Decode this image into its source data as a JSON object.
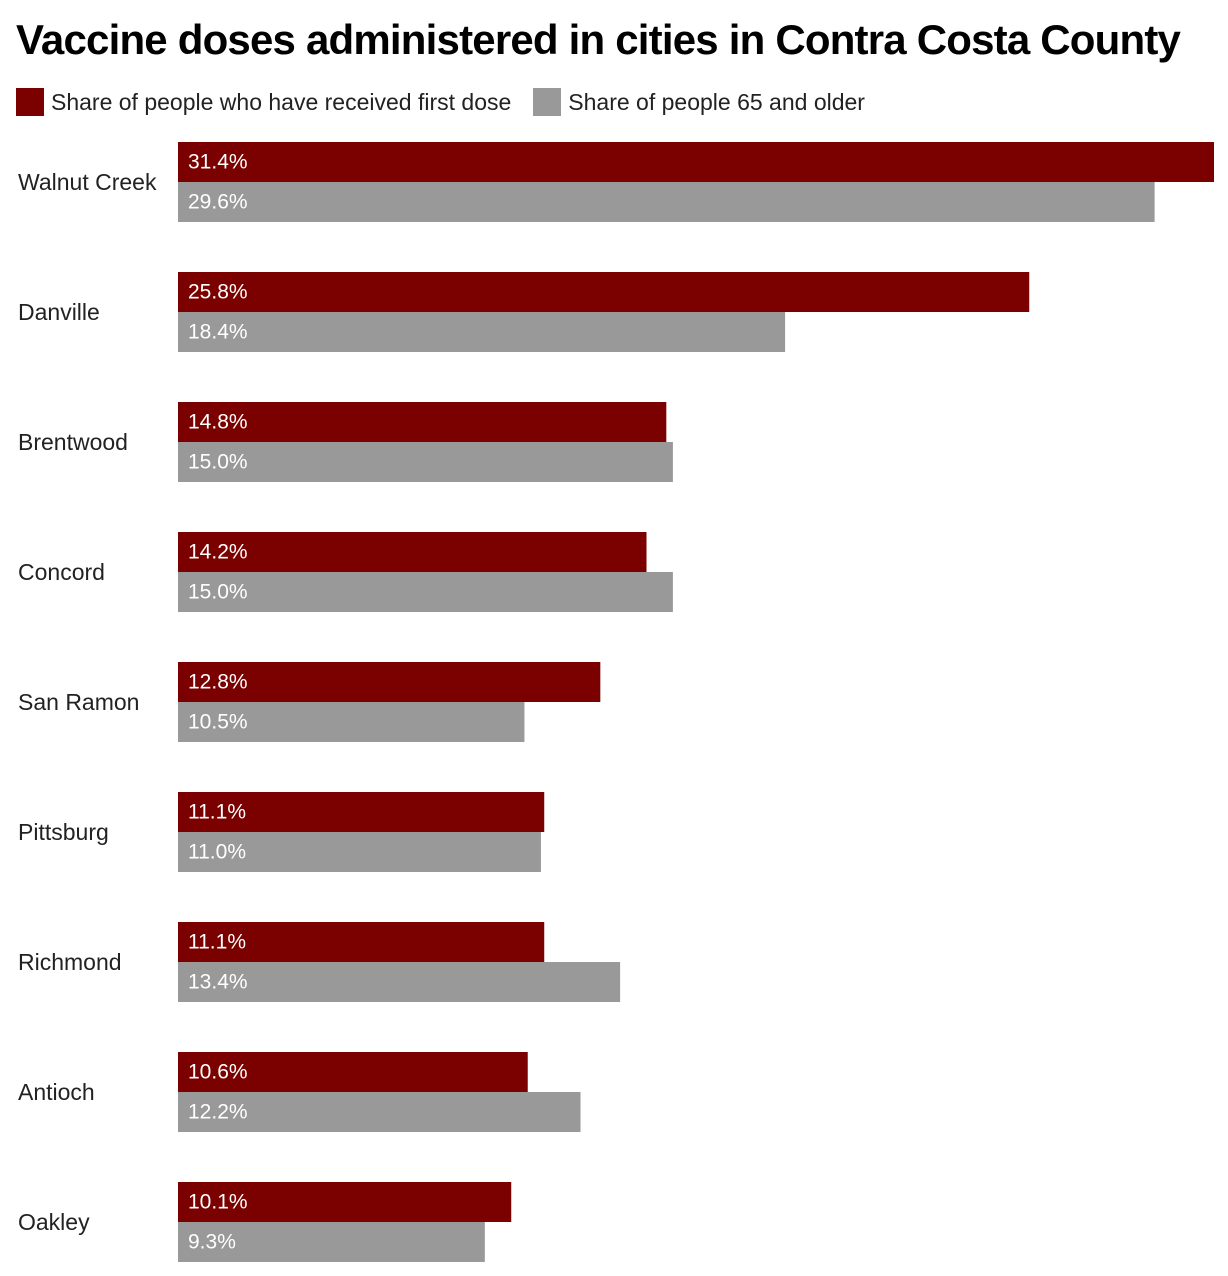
{
  "chart_data": {
    "type": "bar",
    "orientation": "horizontal",
    "title": "Vaccine doses administered in cities in Contra Costa County",
    "legend_position": "top-left",
    "grid": false,
    "xlim": [
      0,
      31.4
    ],
    "value_suffix": "%",
    "categories": [
      "Walnut Creek",
      "Danville",
      "Brentwood",
      "Concord",
      "San Ramon",
      "Pittsburg",
      "Richmond",
      "Antioch",
      "Oakley"
    ],
    "series": [
      {
        "name": "Share of people who have received first dose",
        "color": "#7b0000",
        "values": [
          31.4,
          25.8,
          14.8,
          14.2,
          12.8,
          11.1,
          11.1,
          10.6,
          10.1
        ],
        "labels": [
          "31.4%",
          "25.8%",
          "14.8%",
          "14.2%",
          "12.8%",
          "11.1%",
          "11.1%",
          "10.6%",
          "10.1%"
        ]
      },
      {
        "name": "Share of people 65 and older",
        "color": "#999999",
        "values": [
          29.6,
          18.4,
          15.0,
          15.0,
          10.5,
          11.0,
          13.4,
          12.2,
          9.3
        ],
        "labels": [
          "29.6%",
          "18.4%",
          "15.0%",
          "15.0%",
          "10.5%",
          "11.0%",
          "13.4%",
          "12.2%",
          "9.3%"
        ]
      }
    ]
  }
}
